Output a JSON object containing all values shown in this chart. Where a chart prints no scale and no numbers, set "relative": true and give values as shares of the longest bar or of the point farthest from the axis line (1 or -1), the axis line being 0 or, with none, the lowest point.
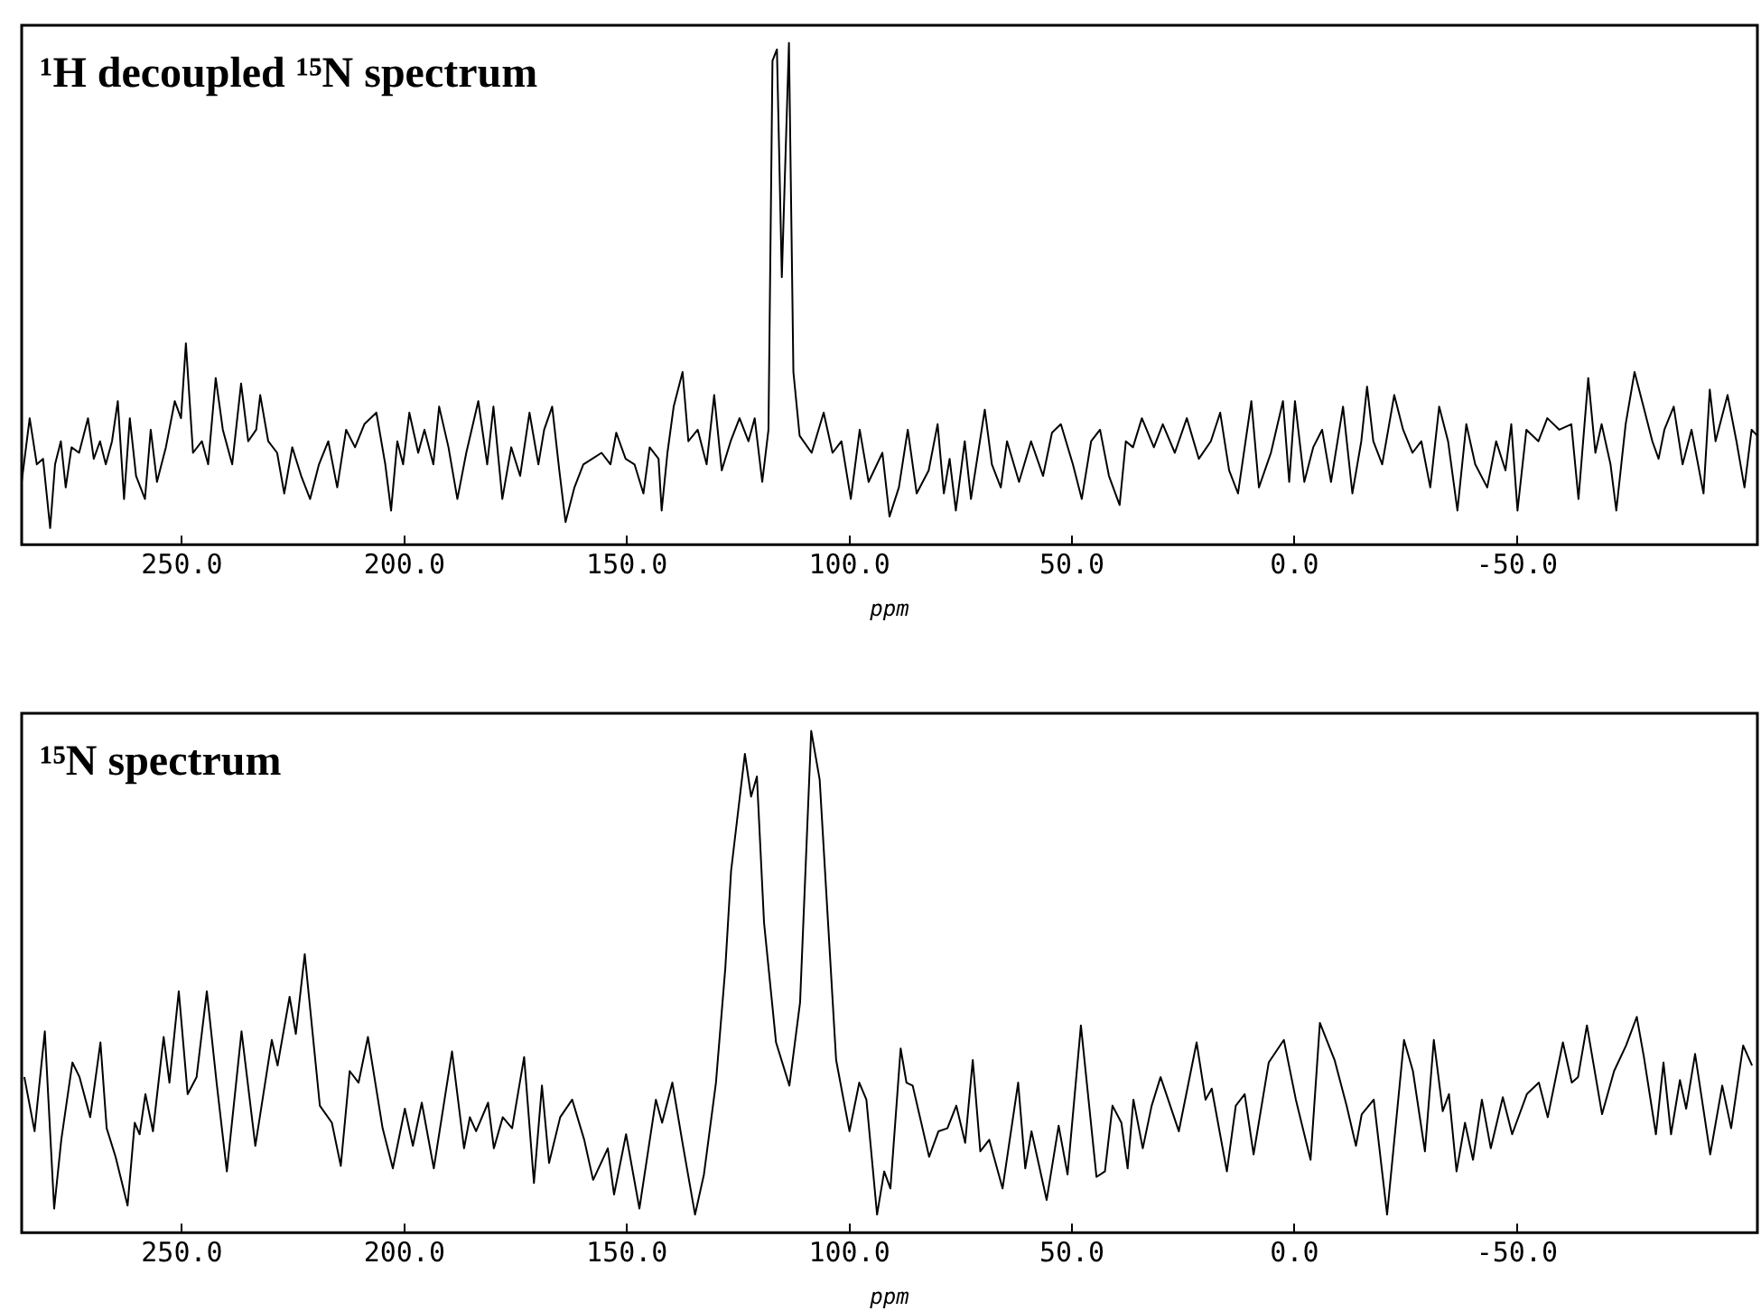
{
  "chart_data": [
    {
      "type": "line",
      "title": "¹H decoupled ¹⁵N spectrum",
      "xlabel": "ppm",
      "relative": true,
      "color": "#000000",
      "grid": false,
      "legend": false,
      "marker": "none",
      "tick_labels": "x",
      "xlim": [
        286,
        -104
      ],
      "xticks": [
        {
          "value": 250,
          "label": "250.0"
        },
        {
          "value": 200,
          "label": "200.0"
        },
        {
          "value": 150,
          "label": "150.0"
        },
        {
          "value": 100,
          "label": "100.0"
        },
        {
          "value": 50,
          "label": "50.0"
        },
        {
          "value": 0,
          "label": "0.0"
        },
        {
          "value": -50,
          "label": "-50.0"
        }
      ],
      "x": [
        286.0,
        284.2,
        282.6,
        281.2,
        279.6,
        278.5,
        277.2,
        276.1,
        274.8,
        273.1,
        271.1,
        269.8,
        268.4,
        267.1,
        265.7,
        264.4,
        263.0,
        261.7,
        260.3,
        258.3,
        257.0,
        255.6,
        253.6,
        251.6,
        250.2,
        249.1,
        247.5,
        245.5,
        244.1,
        242.4,
        240.8,
        238.7,
        236.7,
        235.1,
        233.3,
        232.4,
        230.6,
        228.6,
        227.0,
        225.2,
        223.2,
        221.2,
        219.2,
        217.1,
        215.1,
        213.1,
        211.1,
        209.0,
        206.3,
        204.3,
        203.0,
        201.6,
        200.3,
        198.9,
        196.9,
        195.5,
        193.5,
        192.2,
        190.1,
        188.1,
        186.1,
        183.4,
        181.4,
        180.0,
        178.0,
        176.0,
        174.0,
        171.9,
        169.9,
        168.6,
        166.8,
        165.2,
        163.8,
        161.8,
        159.8,
        157.8,
        155.7,
        153.7,
        152.4,
        150.3,
        148.3,
        146.3,
        144.9,
        142.9,
        142.2,
        140.9,
        139.5,
        137.5,
        136.2,
        134.1,
        132.1,
        130.4,
        128.7,
        126.7,
        124.7,
        122.7,
        121.3,
        119.6,
        118.2,
        117.3,
        116.3,
        115.2,
        113.6,
        112.6,
        111.2,
        108.5,
        105.8,
        103.8,
        101.8,
        99.7,
        97.7,
        95.7,
        92.6,
        91.0,
        88.9,
        86.9,
        84.9,
        82.2,
        80.2,
        78.8,
        77.5,
        76.1,
        74.1,
        72.7,
        69.6,
        68.0,
        66.0,
        64.6,
        61.9,
        59.2,
        56.5,
        54.5,
        52.5,
        49.8,
        47.8,
        45.7,
        43.7,
        41.7,
        39.3,
        37.9,
        36.3,
        34.3,
        31.6,
        29.6,
        26.9,
        24.2,
        21.5,
        18.8,
        16.7,
        14.7,
        12.7,
        9.7,
        8.0,
        5.3,
        2.6,
        1.2,
        -0.1,
        -2.2,
        -4.2,
        -6.2,
        -8.2,
        -10.9,
        -13.0,
        -15.0,
        -16.3,
        -17.7,
        -19.7,
        -22.4,
        -24.4,
        -26.5,
        -28.5,
        -30.5,
        -32.5,
        -34.5,
        -36.6,
        -38.6,
        -40.6,
        -43.3,
        -45.3,
        -47.4,
        -48.7,
        -50.1,
        -52.1,
        -54.8,
        -56.8,
        -59.5,
        -62.2,
        -63.8,
        -66.0,
        -67.6,
        -69.0,
        -71.0,
        -72.3,
        -74.4,
        -76.4,
        -78.4,
        -80.4,
        -81.8,
        -83.1,
        -85.2,
        -87.2,
        -89.2,
        -91.9,
        -93.3,
        -94.6,
        -97.3,
        -99.3,
        -101.1,
        -102.7,
        -104.0
      ],
      "values": [
        0.125,
        0.252,
        0.16,
        0.171,
        0.033,
        0.16,
        0.206,
        0.114,
        0.194,
        0.183,
        0.252,
        0.171,
        0.206,
        0.16,
        0.206,
        0.286,
        0.091,
        0.252,
        0.137,
        0.091,
        0.229,
        0.125,
        0.194,
        0.286,
        0.252,
        0.401,
        0.183,
        0.206,
        0.16,
        0.332,
        0.229,
        0.16,
        0.321,
        0.206,
        0.229,
        0.298,
        0.206,
        0.183,
        0.102,
        0.194,
        0.137,
        0.091,
        0.16,
        0.206,
        0.114,
        0.229,
        0.194,
        0.24,
        0.263,
        0.16,
        0.068,
        0.206,
        0.16,
        0.263,
        0.183,
        0.229,
        0.16,
        0.275,
        0.194,
        0.091,
        0.183,
        0.286,
        0.16,
        0.275,
        0.091,
        0.194,
        0.137,
        0.263,
        0.16,
        0.229,
        0.275,
        0.148,
        0.045,
        0.114,
        0.16,
        0.171,
        0.183,
        0.16,
        0.223,
        0.171,
        0.16,
        0.102,
        0.194,
        0.171,
        0.068,
        0.183,
        0.275,
        0.344,
        0.206,
        0.229,
        0.16,
        0.298,
        0.148,
        0.206,
        0.252,
        0.206,
        0.252,
        0.125,
        0.229,
        0.964,
        0.987,
        0.533,
        1.0,
        0.344,
        0.217,
        0.183,
        0.263,
        0.183,
        0.206,
        0.091,
        0.229,
        0.125,
        0.183,
        0.056,
        0.114,
        0.229,
        0.102,
        0.148,
        0.24,
        0.102,
        0.171,
        0.068,
        0.206,
        0.091,
        0.269,
        0.16,
        0.114,
        0.206,
        0.125,
        0.206,
        0.137,
        0.223,
        0.24,
        0.16,
        0.091,
        0.206,
        0.229,
        0.137,
        0.079,
        0.206,
        0.194,
        0.252,
        0.194,
        0.24,
        0.183,
        0.252,
        0.171,
        0.206,
        0.263,
        0.148,
        0.102,
        0.286,
        0.114,
        0.183,
        0.286,
        0.125,
        0.286,
        0.125,
        0.194,
        0.229,
        0.125,
        0.275,
        0.102,
        0.206,
        0.315,
        0.206,
        0.16,
        0.298,
        0.229,
        0.183,
        0.206,
        0.114,
        0.275,
        0.206,
        0.068,
        0.24,
        0.16,
        0.114,
        0.206,
        0.148,
        0.24,
        0.068,
        0.229,
        0.206,
        0.252,
        0.229,
        0.24,
        0.091,
        0.332,
        0.183,
        0.24,
        0.16,
        0.068,
        0.24,
        0.344,
        0.275,
        0.206,
        0.171,
        0.229,
        0.275,
        0.16,
        0.229,
        0.102,
        0.309,
        0.206,
        0.298,
        0.206,
        0.114,
        0.229,
        0.217
      ]
    },
    {
      "type": "line",
      "title": "¹⁵N spectrum",
      "xlabel": "ppm",
      "relative": true,
      "color": "#000000",
      "grid": false,
      "legend": false,
      "marker": "none",
      "tick_labels": "x",
      "xlim": [
        286,
        -104
      ],
      "xticks": [
        {
          "value": 250,
          "label": "250.0"
        },
        {
          "value": 200,
          "label": "200.0"
        },
        {
          "value": 150,
          "label": "150.0"
        },
        {
          "value": 100,
          "label": "100.0"
        },
        {
          "value": 50,
          "label": "50.0"
        },
        {
          "value": 0,
          "label": "0.0"
        },
        {
          "value": -50,
          "label": "-50.0"
        }
      ],
      "x": [
        285.4,
        283.1,
        280.8,
        278.7,
        277.1,
        274.6,
        273.0,
        270.6,
        268.3,
        266.9,
        264.9,
        262.2,
        260.6,
        259.5,
        258.2,
        256.5,
        254.1,
        252.8,
        250.7,
        248.7,
        246.7,
        244.4,
        242.2,
        239.9,
        236.6,
        233.5,
        229.8,
        228.5,
        225.8,
        224.4,
        222.4,
        219.0,
        216.3,
        214.3,
        212.3,
        210.3,
        208.2,
        204.9,
        202.6,
        199.9,
        198.1,
        196.1,
        193.4,
        189.3,
        186.6,
        185.3,
        183.9,
        181.2,
        179.9,
        177.9,
        175.8,
        173.1,
        170.9,
        169.1,
        167.5,
        165.0,
        162.3,
        159.6,
        157.6,
        154.3,
        152.9,
        150.2,
        147.2,
        143.5,
        142.1,
        139.8,
        137.4,
        134.7,
        132.7,
        130.0,
        127.9,
        126.6,
        123.5,
        122.1,
        120.8,
        119.2,
        116.5,
        113.5,
        111.1,
        108.6,
        106.7,
        103.0,
        100.0,
        97.8,
        96.2,
        93.8,
        92.2,
        90.8,
        88.5,
        87.2,
        85.8,
        82.1,
        80.0,
        78.0,
        76.0,
        74.0,
        72.3,
        70.6,
        68.6,
        65.6,
        62.1,
        60.5,
        59.1,
        55.7,
        53.0,
        51.0,
        48.0,
        44.5,
        42.6,
        40.9,
        38.9,
        37.5,
        36.2,
        34.1,
        32.1,
        30.1,
        26.0,
        22.0,
        20.0,
        18.6,
        15.2,
        13.2,
        11.2,
        9.2,
        5.8,
        2.4,
        -0.3,
        -3.6,
        -5.7,
        -9.0,
        -11.7,
        -13.8,
        -15.1,
        -17.8,
        -20.8,
        -24.6,
        -26.6,
        -29.3,
        -31.3,
        -33.3,
        -34.7,
        -36.4,
        -38.3,
        -40.1,
        -42.1,
        -44.1,
        -46.8,
        -48.9,
        -52.2,
        -54.9,
        -56.9,
        -60.3,
        -62.3,
        -63.7,
        -65.7,
        -69.1,
        -71.8,
        -74.5,
        -76.9,
        -78.5,
        -81.2,
        -82.9,
        -84.6,
        -86.6,
        -88.0,
        -90.0,
        -93.4,
        -96.1,
        -98.1,
        -100.8,
        -102.8
      ],
      "values": [
        0.31,
        0.202,
        0.401,
        0.048,
        0.185,
        0.339,
        0.31,
        0.23,
        0.379,
        0.208,
        0.151,
        0.054,
        0.219,
        0.196,
        0.276,
        0.202,
        0.39,
        0.299,
        0.481,
        0.276,
        0.31,
        0.481,
        0.299,
        0.122,
        0.401,
        0.173,
        0.384,
        0.333,
        0.47,
        0.396,
        0.555,
        0.253,
        0.219,
        0.133,
        0.322,
        0.299,
        0.39,
        0.208,
        0.128,
        0.247,
        0.173,
        0.259,
        0.128,
        0.361,
        0.168,
        0.23,
        0.202,
        0.259,
        0.168,
        0.23,
        0.208,
        0.35,
        0.099,
        0.293,
        0.139,
        0.23,
        0.265,
        0.185,
        0.105,
        0.168,
        0.076,
        0.196,
        0.048,
        0.265,
        0.219,
        0.299,
        0.173,
        0.036,
        0.116,
        0.299,
        0.527,
        0.721,
        0.954,
        0.869,
        0.909,
        0.618,
        0.379,
        0.293,
        0.459,
        1.0,
        0.903,
        0.344,
        0.202,
        0.299,
        0.265,
        0.036,
        0.122,
        0.088,
        0.367,
        0.299,
        0.293,
        0.151,
        0.202,
        0.208,
        0.253,
        0.179,
        0.344,
        0.162,
        0.185,
        0.088,
        0.299,
        0.128,
        0.202,
        0.065,
        0.213,
        0.116,
        0.413,
        0.111,
        0.122,
        0.253,
        0.219,
        0.128,
        0.265,
        0.168,
        0.253,
        0.31,
        0.202,
        0.379,
        0.265,
        0.287,
        0.122,
        0.253,
        0.276,
        0.156,
        0.339,
        0.384,
        0.265,
        0.145,
        0.418,
        0.344,
        0.253,
        0.173,
        0.236,
        0.265,
        0.036,
        0.384,
        0.322,
        0.162,
        0.384,
        0.242,
        0.276,
        0.122,
        0.219,
        0.145,
        0.265,
        0.168,
        0.27,
        0.196,
        0.276,
        0.299,
        0.23,
        0.379,
        0.299,
        0.31,
        0.413,
        0.236,
        0.322,
        0.373,
        0.43,
        0.35,
        0.196,
        0.339,
        0.196,
        0.304,
        0.247,
        0.356,
        0.156,
        0.293,
        0.208,
        0.373,
        0.333
      ]
    }
  ]
}
